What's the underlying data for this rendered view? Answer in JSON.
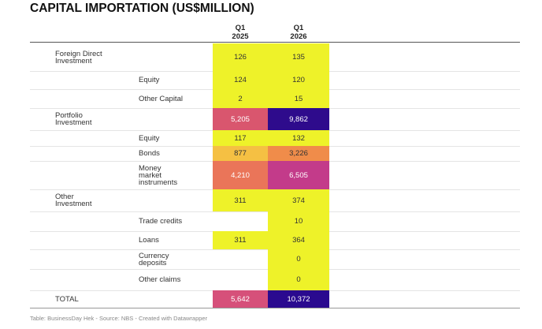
{
  "header": {
    "title": "CAPITAL IMPORTATION (US$MILLION)",
    "columns": [
      "Q1 2025",
      "Q1 2026"
    ]
  },
  "table": {
    "rows": [
      {
        "label": "Foreign Direct Investment",
        "cells": [
          {
            "text": "126",
            "bg": "#eef229"
          },
          {
            "text": "135",
            "bg": "#eef229"
          }
        ],
        "children": [
          {
            "label": "Equity",
            "cells": [
              {
                "text": "124",
                "bg": "#eef229"
              },
              {
                "text": "120",
                "bg": "#eef229"
              }
            ]
          },
          {
            "label": "Other Capital",
            "cells": [
              {
                "text": "2",
                "bg": "#eef229"
              },
              {
                "text": "15",
                "bg": "#eef229"
              }
            ]
          }
        ]
      },
      {
        "label": "Portfolio Investment",
        "cells": [
          {
            "text": "5,205",
            "bg": "#d9566e"
          },
          {
            "text": "9,862",
            "bg": "#2e0b8c"
          }
        ],
        "children": [
          {
            "label": "Equity",
            "cells": [
              {
                "text": "117",
                "bg": "#eef229"
              },
              {
                "text": "132",
                "bg": "#eef229"
              }
            ]
          },
          {
            "label": "Bonds",
            "cells": [
              {
                "text": "877",
                "bg": "#f5c043"
              },
              {
                "text": "3,226",
                "bg": "#f08c4a"
              }
            ]
          },
          {
            "label": "Money market instruments",
            "cells": [
              {
                "text": "4,210",
                "bg": "#ea7559"
              },
              {
                "text": "6,505",
                "bg": "#c33b8a"
              }
            ]
          }
        ]
      },
      {
        "label": "Other Investment",
        "cells": [
          {
            "text": "311",
            "bg": "#eef229"
          },
          {
            "text": "374",
            "bg": "#eef229"
          }
        ],
        "children": [
          {
            "label": "Trade credits",
            "cells": [
              null,
              {
                "text": "10",
                "bg": "#eef229"
              }
            ]
          },
          {
            "label": "Loans",
            "cells": [
              {
                "text": "311",
                "bg": "#eef229"
              },
              {
                "text": "364",
                "bg": "#eef229"
              }
            ]
          },
          {
            "label": "Currency deposits",
            "cells": [
              null,
              {
                "text": "0",
                "bg": "#eef229"
              }
            ]
          },
          {
            "label": "Other claims",
            "cells": [
              null,
              {
                "text": "0",
                "bg": "#eef229"
              }
            ]
          }
        ]
      },
      {
        "label": "TOTAL",
        "cells": [
          {
            "text": "5,642",
            "bg": "#d6507a"
          },
          {
            "text": "10,372",
            "bg": "#2a0a8f"
          }
        ]
      }
    ]
  },
  "footer": "Table: BusinessDay Hek - Source: NBS - Created with Datawrapper"
}
